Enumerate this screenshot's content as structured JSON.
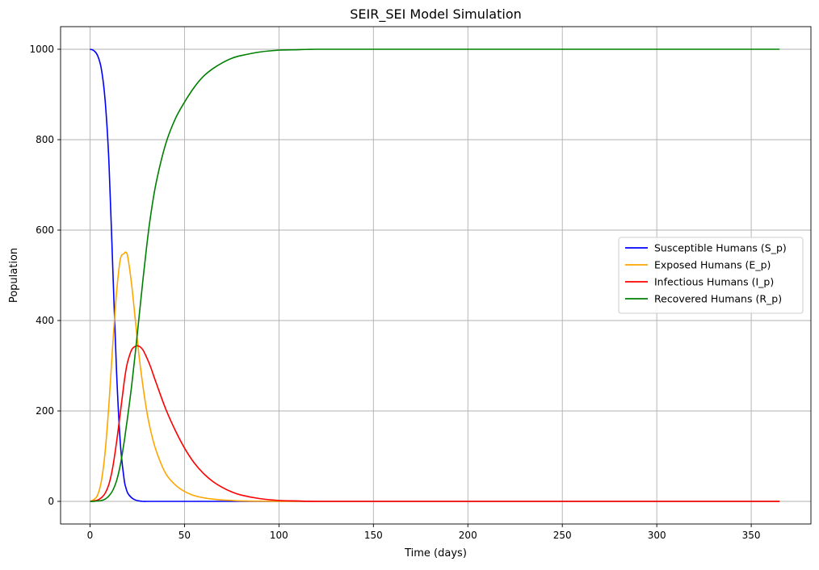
{
  "chart_data": {
    "type": "line",
    "title": "SEIR_SEI Model Simulation",
    "xlabel": "Time (days)",
    "ylabel": "Population",
    "xlim": [
      -15.6,
      381.6
    ],
    "ylim": [
      -50,
      1050
    ],
    "xticks": [
      0,
      50,
      100,
      150,
      200,
      250,
      300,
      350
    ],
    "yticks": [
      0,
      200,
      400,
      600,
      800,
      1000
    ],
    "grid": true,
    "legend_position": "center-right",
    "x": [
      0,
      2,
      4,
      6,
      8,
      10,
      12,
      14,
      16,
      18,
      19,
      20,
      22,
      24,
      26,
      28,
      30,
      32,
      35,
      40,
      45,
      50,
      55,
      60,
      65,
      70,
      75,
      80,
      90,
      100,
      110,
      120,
      150,
      200,
      250,
      300,
      365
    ],
    "series": [
      {
        "name": "Susceptible Humans (S_p)",
        "color": "#0000ff",
        "values": [
          1000,
          997,
          986,
          956,
          886,
          750,
          520,
          290,
          130,
          50,
          30,
          18,
          8,
          3,
          1,
          0,
          0,
          0,
          0,
          0,
          0,
          0,
          0,
          0,
          0,
          0,
          0,
          0,
          0,
          0,
          0,
          0,
          0,
          0,
          0,
          0,
          0
        ]
      },
      {
        "name": "Exposed Humans (E_p)",
        "color": "#ffa500",
        "values": [
          0,
          4,
          14,
          45,
          110,
          215,
          345,
          460,
          535,
          548,
          551,
          540,
          480,
          400,
          320,
          255,
          200,
          158,
          112,
          62,
          37,
          22,
          13,
          8,
          5,
          3,
          2,
          1,
          0.5,
          0,
          0,
          0,
          0,
          0,
          0,
          0,
          0
        ]
      },
      {
        "name": "Infectious Humans (I_p)",
        "color": "#ff0000",
        "values": [
          0,
          1,
          3,
          8,
          18,
          38,
          75,
          130,
          195,
          262,
          290,
          310,
          335,
          343,
          343,
          335,
          318,
          298,
          262,
          205,
          158,
          118,
          86,
          62,
          44,
          31,
          21,
          14,
          6,
          2,
          1,
          0,
          0,
          0,
          0,
          0,
          0
        ]
      },
      {
        "name": "Recovered Humans (R_p)",
        "color": "#008000",
        "values": [
          0,
          0,
          1,
          2,
          5,
          12,
          24,
          45,
          80,
          130,
          160,
          190,
          255,
          330,
          410,
          490,
          565,
          630,
          705,
          790,
          845,
          883,
          915,
          940,
          957,
          970,
          980,
          986,
          994,
          998,
          999,
          1000,
          1000,
          1000,
          1000,
          1000,
          1000
        ]
      }
    ]
  }
}
